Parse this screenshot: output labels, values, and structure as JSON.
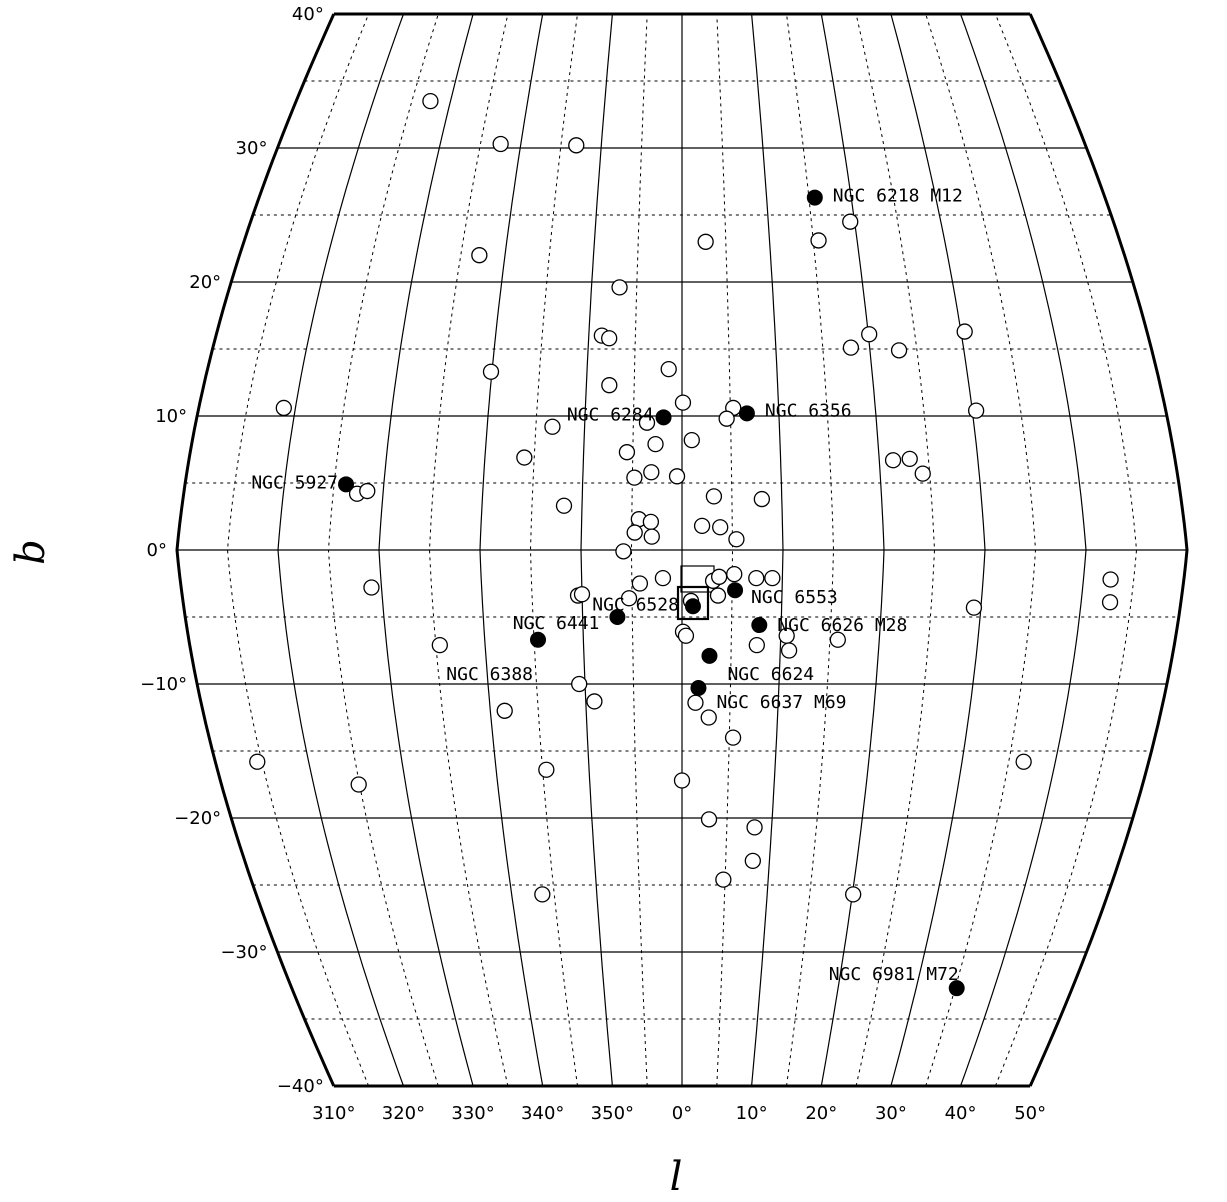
{
  "chart_data": {
    "type": "scatter",
    "projection": "sinusoidal-like all-sky",
    "xlabel": "l",
    "ylabel": "b",
    "xlim": [
      310,
      50
    ],
    "ylim": [
      -40,
      40
    ],
    "x_tick_labels": [
      "310°",
      "320°",
      "330°",
      "340°",
      "350°",
      "0°",
      "10°",
      "20°",
      "30°",
      "40°",
      "50°"
    ],
    "y_tick_labels": [
      "40°",
      "30°",
      "20°",
      "10°",
      "0°",
      "−10°",
      "−20°",
      "−30°",
      "−40°"
    ],
    "grid": true,
    "series": [
      {
        "marker": "filled-circle",
        "points": [
          {
            "name": "NGC 6218 M12",
            "l": 15.7,
            "b": 26.3
          },
          {
            "name": "NGC 6356",
            "l": 6.7,
            "b": 10.2
          },
          {
            "name": "NGC 6284",
            "l": -1.9,
            "b": 9.9
          },
          {
            "name": "NGC 5927",
            "l": -33.8,
            "b": 4.9
          },
          {
            "name": "NGC 6553",
            "l": 5.3,
            "b": -3.0
          },
          {
            "name": "NGC 6528",
            "l": 1.1,
            "b": -4.2
          },
          {
            "name": "NGC 6441",
            "l": -6.5,
            "b": -5.0
          },
          {
            "name": "NGC 6626 M28",
            "l": 7.8,
            "b": -5.6
          },
          {
            "name": "NGC 6388",
            "l": -14.6,
            "b": -6.7
          },
          {
            "name": "NGC 6624",
            "l": 2.8,
            "b": -7.9
          },
          {
            "name": "NGC 6637 M69",
            "l": 1.7,
            "b": -10.3
          },
          {
            "name": "NGC 6981 M72",
            "l": 35.2,
            "b": -32.7
          }
        ]
      },
      {
        "marker": "open-circle",
        "points": [
          {
            "l": -32.6,
            "b": 33.5
          },
          {
            "l": -22.5,
            "b": 30.3
          },
          {
            "l": -13.1,
            "b": 30.2
          },
          {
            "l": 2.7,
            "b": 23.0
          },
          {
            "l": 15.6,
            "b": 23.1
          },
          {
            "l": 19.5,
            "b": 24.5
          },
          {
            "l": -22.9,
            "b": 22.0
          },
          {
            "l": -6.9,
            "b": 19.6
          },
          {
            "l": -8.6,
            "b": 16.0
          },
          {
            "l": -7.8,
            "b": 15.8
          },
          {
            "l": 30.4,
            "b": 16.3
          },
          {
            "l": 20.1,
            "b": 16.1
          },
          {
            "l": 18.0,
            "b": 15.1
          },
          {
            "l": 23.1,
            "b": 14.9
          },
          {
            "l": -20.1,
            "b": 13.3
          },
          {
            "l": -1.4,
            "b": 13.5
          },
          {
            "l": -7.6,
            "b": 12.3
          },
          {
            "l": -41.2,
            "b": 10.6
          },
          {
            "l": 0.1,
            "b": 11.0
          },
          {
            "l": 5.3,
            "b": 10.6
          },
          {
            "l": 30.4,
            "b": 10.4
          },
          {
            "l": 4.6,
            "b": 9.8
          },
          {
            "l": -3.6,
            "b": 9.5
          },
          {
            "l": -13.3,
            "b": 9.2
          },
          {
            "l": 1.0,
            "b": 8.2
          },
          {
            "l": -2.7,
            "b": 7.9
          },
          {
            "l": -5.6,
            "b": 7.3
          },
          {
            "l": -16.0,
            "b": 6.9
          },
          {
            "l": 21.4,
            "b": 6.7
          },
          {
            "l": 23.1,
            "b": 6.8
          },
          {
            "l": 24.3,
            "b": 5.7
          },
          {
            "l": -3.1,
            "b": 5.8
          },
          {
            "l": -0.5,
            "b": 5.5
          },
          {
            "l": -4.8,
            "b": 5.4
          },
          {
            "l": -32.6,
            "b": 4.2
          },
          {
            "l": -31.6,
            "b": 4.4
          },
          {
            "l": 3.2,
            "b": 4.0
          },
          {
            "l": 8.0,
            "b": 3.8
          },
          {
            "l": -11.8,
            "b": 3.3
          },
          {
            "l": -4.3,
            "b": 2.3
          },
          {
            "l": -3.1,
            "b": 2.1
          },
          {
            "l": 2.0,
            "b": 1.8
          },
          {
            "l": 3.8,
            "b": 1.7
          },
          {
            "l": -4.7,
            "b": 1.3
          },
          {
            "l": -3.0,
            "b": 1.0
          },
          {
            "l": 5.4,
            "b": 0.8
          },
          {
            "l": -5.8,
            "b": -0.1
          },
          {
            "l": -1.9,
            "b": -2.1
          },
          {
            "l": 3.1,
            "b": -2.3
          },
          {
            "l": 3.7,
            "b": -2.0
          },
          {
            "l": 5.2,
            "b": -1.8
          },
          {
            "l": 7.4,
            "b": -2.1
          },
          {
            "l": 9.0,
            "b": -2.1
          },
          {
            "l": 42.7,
            "b": -2.2
          },
          {
            "l": -4.2,
            "b": -2.5
          },
          {
            "l": -31.0,
            "b": -2.8
          },
          {
            "l": -10.4,
            "b": -3.4
          },
          {
            "l": -10.0,
            "b": -3.3
          },
          {
            "l": -5.3,
            "b": -3.6
          },
          {
            "l": 0.9,
            "b": -3.8
          },
          {
            "l": 3.6,
            "b": -3.4
          },
          {
            "l": 42.9,
            "b": -3.9
          },
          {
            "l": 29.3,
            "b": -4.3
          },
          {
            "l": 0.1,
            "b": -6.1
          },
          {
            "l": 0.4,
            "b": -6.4
          },
          {
            "l": 10.6,
            "b": -6.4
          },
          {
            "l": 15.8,
            "b": -6.7
          },
          {
            "l": -24.6,
            "b": -7.1
          },
          {
            "l": 7.6,
            "b": -7.1
          },
          {
            "l": 10.9,
            "b": -7.5
          },
          {
            "l": -10.6,
            "b": -10.0
          },
          {
            "l": -9.1,
            "b": -11.3
          },
          {
            "l": -18.5,
            "b": -12.0
          },
          {
            "l": 1.4,
            "b": -11.4
          },
          {
            "l": 2.8,
            "b": -12.5
          },
          {
            "l": 5.4,
            "b": -14.0
          },
          {
            "l": -45.5,
            "b": -15.8
          },
          {
            "l": 36.6,
            "b": -15.8
          },
          {
            "l": -14.6,
            "b": -16.4
          },
          {
            "l": -35.1,
            "b": -17.5
          },
          {
            "l": 0.0,
            "b": -17.2
          },
          {
            "l": 3.0,
            "b": -20.1
          },
          {
            "l": 8.1,
            "b": -20.7
          },
          {
            "l": 8.1,
            "b": -23.2
          },
          {
            "l": 4.8,
            "b": -24.6
          },
          {
            "l": 20.1,
            "b": -25.7
          },
          {
            "l": -16.4,
            "b": -25.7
          }
        ]
      }
    ]
  }
}
